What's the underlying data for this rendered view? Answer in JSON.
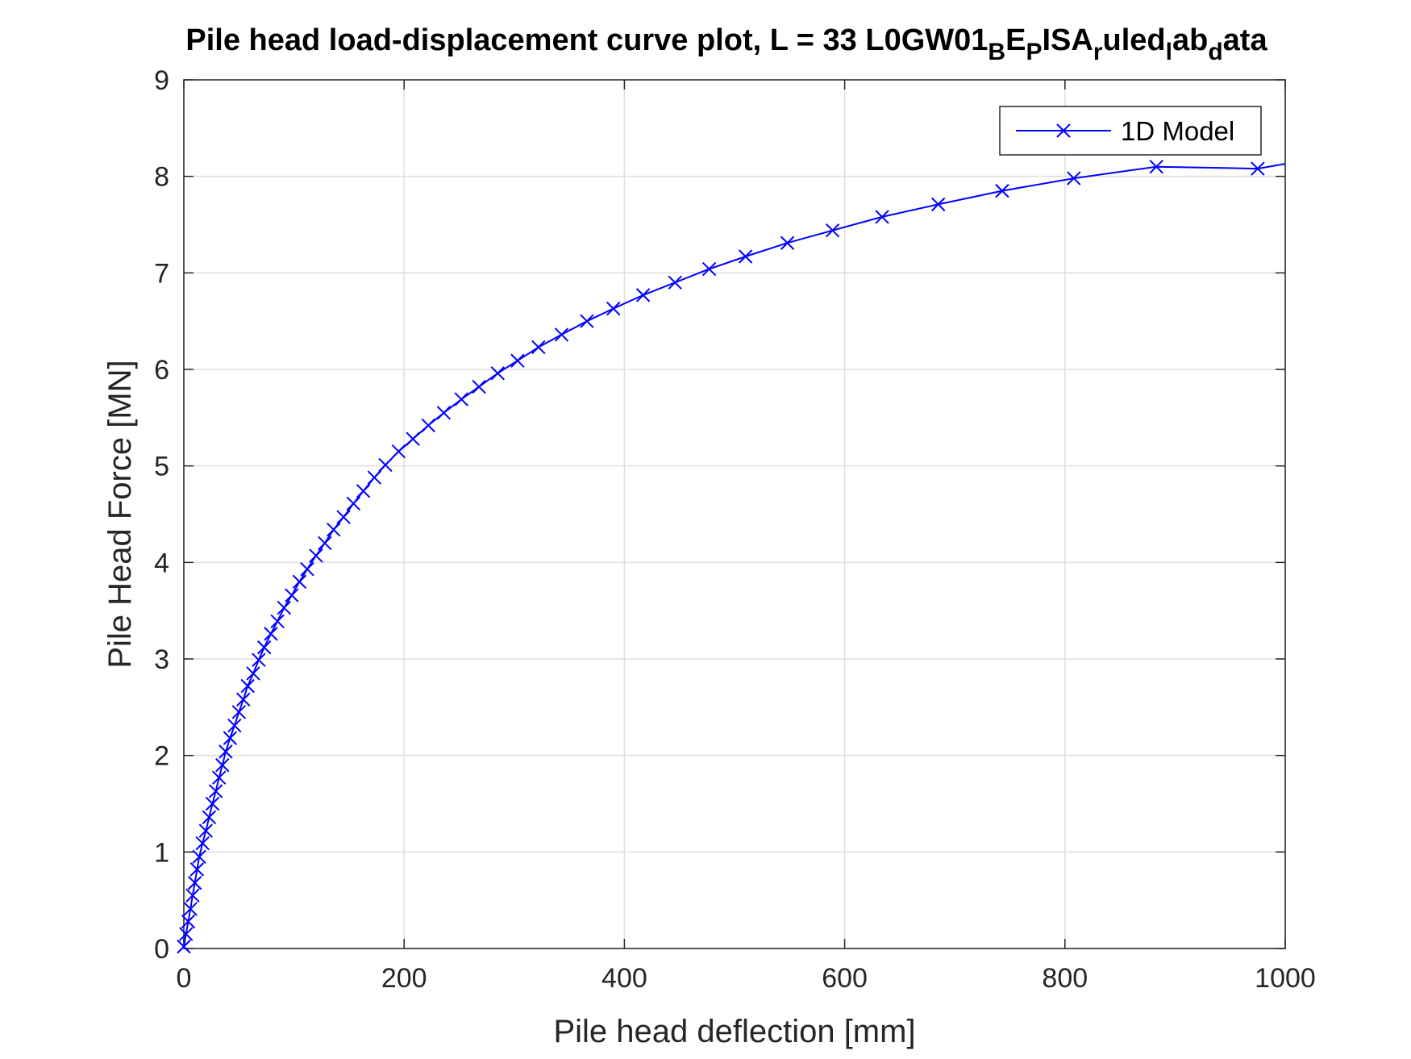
{
  "chart_data": {
    "type": "line",
    "title": "Pile head load-displacement curve plot, L = 33 L0GW01",
    "title_parts": [
      {
        "text": "Pile head load-displacement curve plot, L = 33 L0GW01",
        "sub": false
      },
      {
        "text": "B",
        "sub": true
      },
      {
        "text": "E",
        "sub": false
      },
      {
        "text": "P",
        "sub": true
      },
      {
        "text": "ISA",
        "sub": false
      },
      {
        "text": "r",
        "sub": true
      },
      {
        "text": "uled",
        "sub": false
      },
      {
        "text": "l",
        "sub": true
      },
      {
        "text": "ab",
        "sub": false
      },
      {
        "text": "d",
        "sub": true
      },
      {
        "text": "ata",
        "sub": false
      }
    ],
    "xlabel": "Pile head deflection [mm]",
    "ylabel": "Pile Head Force [MN]",
    "xlim": [
      0,
      1000
    ],
    "ylim": [
      0,
      9
    ],
    "xticks": [
      0,
      200,
      400,
      600,
      800,
      1000
    ],
    "yticks": [
      0,
      1,
      2,
      3,
      4,
      5,
      6,
      7,
      8,
      9
    ],
    "grid": true,
    "legend_position": "top-right",
    "series": [
      {
        "name": "1D Model",
        "color": "#0000ff",
        "marker": "x",
        "x": [
          0,
          2,
          4,
          6,
          8,
          10,
          12,
          14,
          17,
          20,
          23,
          26,
          29,
          32,
          35,
          38,
          42,
          46,
          50,
          54,
          58,
          63,
          68,
          73,
          79,
          85,
          91,
          98,
          105,
          112,
          120,
          128,
          136,
          145,
          154,
          163,
          173,
          183,
          195,
          208,
          222,
          236,
          252,
          268,
          285,
          303,
          322,
          343,
          366,
          390,
          417,
          446,
          477,
          510,
          548,
          589,
          634,
          685,
          743,
          808,
          883,
          975,
          1000
        ],
        "y": [
          0.02,
          0.15,
          0.28,
          0.41,
          0.55,
          0.68,
          0.82,
          0.95,
          1.09,
          1.22,
          1.36,
          1.5,
          1.63,
          1.77,
          1.9,
          2.04,
          2.18,
          2.31,
          2.45,
          2.58,
          2.72,
          2.85,
          2.99,
          3.12,
          3.26,
          3.39,
          3.53,
          3.66,
          3.8,
          3.93,
          4.07,
          4.2,
          4.34,
          4.47,
          4.61,
          4.74,
          4.88,
          5.01,
          5.15,
          5.28,
          5.42,
          5.55,
          5.69,
          5.82,
          5.96,
          6.09,
          6.23,
          6.36,
          6.5,
          6.63,
          6.77,
          6.9,
          7.04,
          7.17,
          7.31,
          7.44,
          7.58,
          7.71,
          7.85,
          7.98,
          8.1,
          8.08,
          8.13
        ]
      }
    ]
  }
}
